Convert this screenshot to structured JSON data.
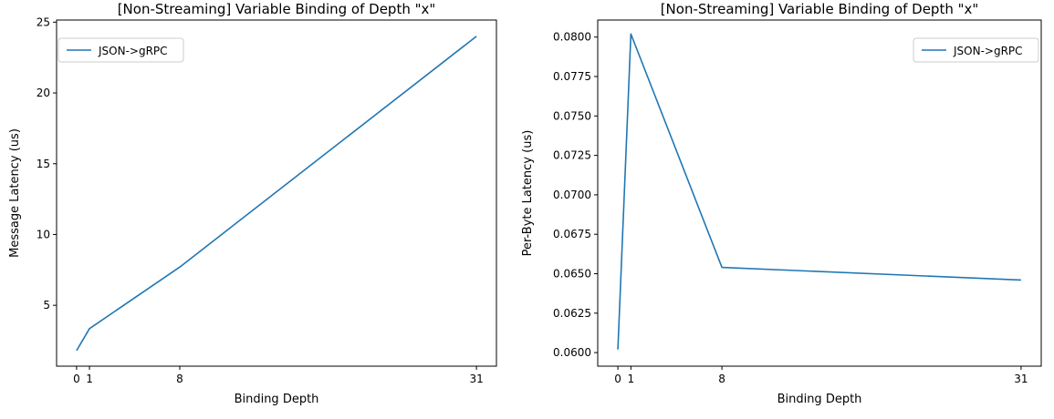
{
  "chart_data": [
    {
      "type": "line",
      "title": "[Non-Streaming] Variable Binding of Depth \"x\"",
      "xlabel": "Binding Depth",
      "ylabel": "Message Latency (us)",
      "xlim": [
        -1.55,
        32.55
      ],
      "ylim": [
        0.7,
        25.15
      ],
      "xticks": [
        0,
        1,
        8,
        31
      ],
      "xticklabels": [
        "0",
        "1",
        "8",
        "31"
      ],
      "yticks": [
        5,
        10,
        15,
        20,
        25
      ],
      "yticklabels": [
        "5",
        "10",
        "15",
        "20",
        "25"
      ],
      "legend_loc": "upper left",
      "series": [
        {
          "name": "JSON->gRPC",
          "color": "#1f77b4",
          "x": [
            0,
            1,
            8,
            31
          ],
          "y": [
            1.8,
            3.35,
            7.7,
            24.0
          ]
        }
      ]
    },
    {
      "type": "line",
      "title": "[Non-Streaming] Variable Binding of Depth \"x\"",
      "xlabel": "Binding Depth",
      "ylabel": "Per-Byte Latency (us)",
      "xlim": [
        -1.55,
        32.55
      ],
      "ylim": [
        0.05914,
        0.08108
      ],
      "xticks": [
        0,
        1,
        8,
        31
      ],
      "xticklabels": [
        "0",
        "1",
        "8",
        "31"
      ],
      "yticks": [
        0.06,
        0.0625,
        0.065,
        0.0675,
        0.07,
        0.0725,
        0.075,
        0.0775,
        0.08
      ],
      "yticklabels": [
        "0.0600",
        "0.0625",
        "0.0650",
        "0.0675",
        "0.0700",
        "0.0725",
        "0.0750",
        "0.0775",
        "0.0800"
      ],
      "legend_loc": "upper right",
      "series": [
        {
          "name": "JSON->gRPC",
          "color": "#1f77b4",
          "x": [
            0,
            1,
            8,
            31
          ],
          "y": [
            0.0602,
            0.0802,
            0.0654,
            0.0646
          ]
        }
      ]
    }
  ]
}
